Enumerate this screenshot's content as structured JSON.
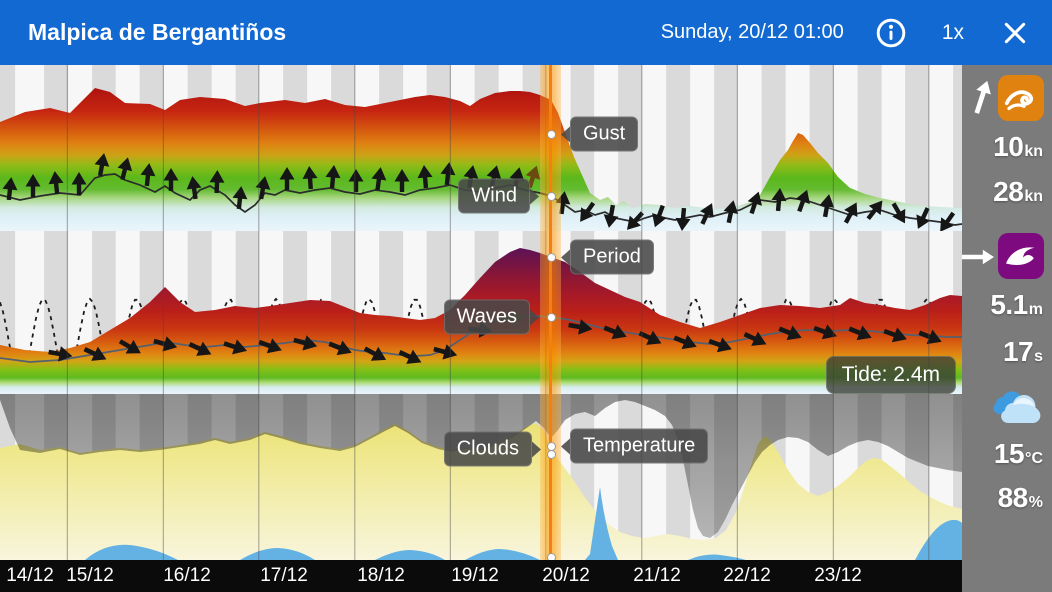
{
  "header": {
    "title": "Malpica de Bergantiños",
    "datetime": "Sunday, 20/12 01:00",
    "speed": "1x"
  },
  "tooltips": {
    "gust": "Gust",
    "wind": "Wind",
    "period": "Period",
    "waves": "Waves",
    "tide": "Tide: 2.4m",
    "clouds": "Clouds",
    "temperature": "Temperature"
  },
  "sidebar": {
    "wind": {
      "icon": "wind-icon",
      "direction_icon": "arrow-up-right",
      "speed": "10",
      "speed_unit": "kn",
      "gust": "28",
      "gust_unit": "kn"
    },
    "waves": {
      "icon": "wave-icon",
      "direction_icon": "arrow-right",
      "height": "5.1",
      "height_unit": "m",
      "period": "17",
      "period_unit": "s"
    },
    "weather": {
      "icon": "cloud-icon",
      "temperature": "15",
      "temperature_unit": "°C",
      "humidity": "88",
      "humidity_unit": "%"
    }
  },
  "colors": {
    "header_blue": "#1269d2",
    "sidebar_gray": "#7b7b7b",
    "marker_orange": "#f57f17",
    "wind_icon_orange": "#e0820f",
    "wave_icon_purple": "#7e0a80",
    "timebar_black": "#0b0b0b"
  },
  "chart_data": {
    "type": "area",
    "x_axis": {
      "labels": [
        "14/12",
        "15/12",
        "16/12",
        "17/12",
        "18/12",
        "19/12",
        "20/12",
        "21/12",
        "22/12",
        "23/12"
      ],
      "selected_x": "Sunday, 20/12 01:00",
      "grid": "day/night vertical bands, day boundary lines"
    },
    "panels": [
      {
        "name": "wind",
        "series": [
          "gust envelope colored by speed (red=strong, green/blue=light)",
          "wind speed line",
          "wind direction arrows"
        ],
        "selected": {
          "wind_kn": 10,
          "gust_kn": 28
        }
      },
      {
        "name": "waves",
        "series": [
          "swell envelope colored by size (purple=big)",
          "wave height line",
          "tide oscillation (dashed sine)",
          "wave direction arrows"
        ],
        "selected": {
          "height_m": 5.1,
          "period_s": 17,
          "tide_m": 2.4
        }
      },
      {
        "name": "clouds",
        "series": [
          "cloud cover (gray, hanging from top)",
          "clear sky / sunshine (yellow)",
          "precipitation (blue, from bottom)"
        ],
        "selected": {
          "temperature_c": 15,
          "cloud_cover_pct": 88
        }
      }
    ],
    "legend_position": "inline tooltips at selected time"
  }
}
